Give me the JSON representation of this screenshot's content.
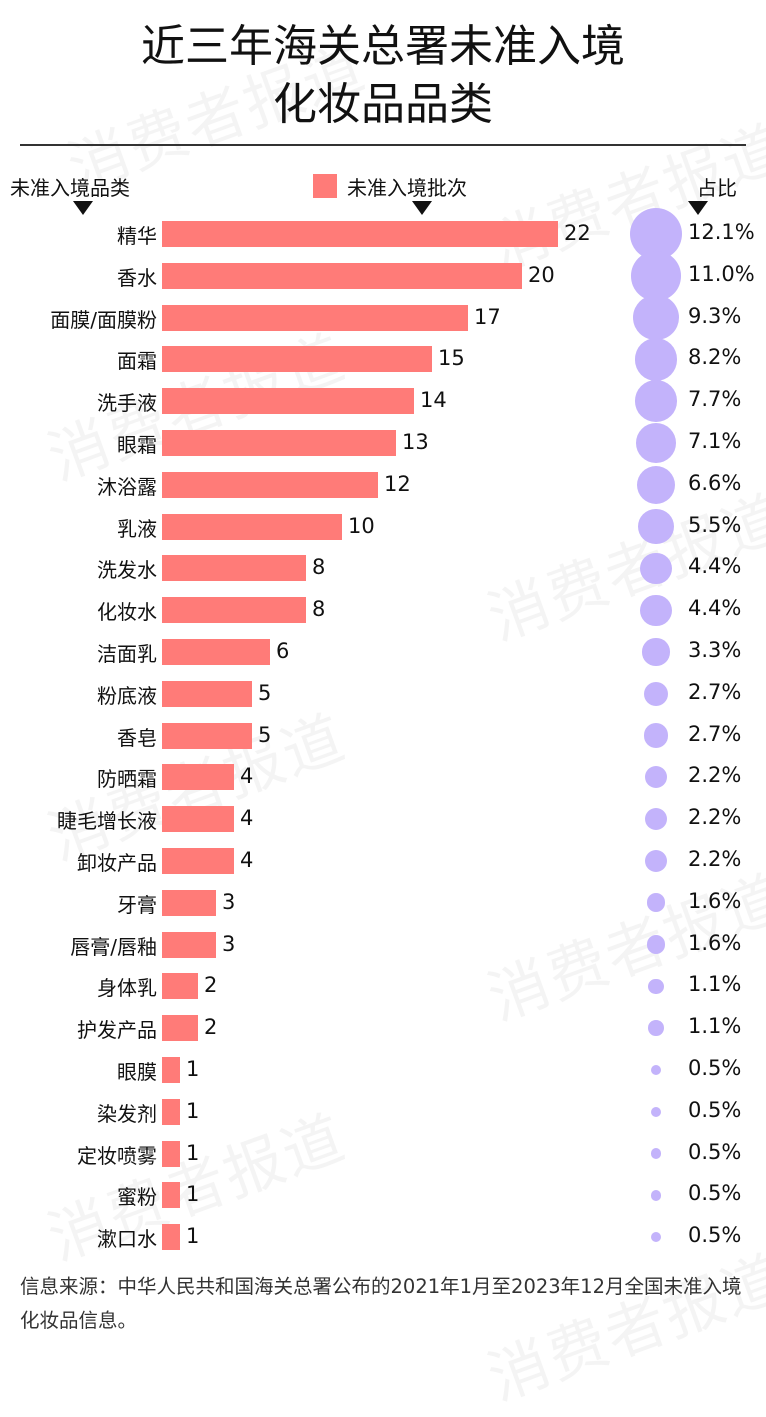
{
  "title_lines": [
    "近三年海关总署未准入境",
    "化妆品品类"
  ],
  "headers": {
    "category": "未准入境品类",
    "batches": "未准入境批次",
    "share": "占比"
  },
  "colors": {
    "bar": "#ff7b78",
    "bubble": "#c3b3fb",
    "text": "#111111",
    "rule": "#333333"
  },
  "watermark": "消费者报道",
  "footer": "信息来源：中华人民共和国海关总署公布的2021年1月至2023年12月全国未准入境化妆品信息。",
  "chart_data": {
    "type": "bar",
    "orientation": "horizontal",
    "title": "近三年海关总署未准入境化妆品品类",
    "xlabel": "未准入境批次",
    "ylabel": "未准入境品类",
    "legend": [
      "未准入境批次"
    ],
    "categories": [
      "精华",
      "香水",
      "面膜/面膜粉",
      "面霜",
      "洗手液",
      "眼霜",
      "沐浴露",
      "乳液",
      "洗发水",
      "化妆水",
      "洁面乳",
      "粉底液",
      "香皂",
      "防晒霜",
      "睫毛增长液",
      "卸妆产品",
      "牙膏",
      "唇膏/唇釉",
      "身体乳",
      "护发产品",
      "眼膜",
      "染发剂",
      "定妆喷雾",
      "蜜粉",
      "漱口水"
    ],
    "values": [
      22,
      20,
      17,
      15,
      14,
      13,
      12,
      10,
      8,
      8,
      6,
      5,
      5,
      4,
      4,
      4,
      3,
      3,
      2,
      2,
      1,
      1,
      1,
      1,
      1
    ],
    "shares": [
      "12.1%",
      "11.0%",
      "9.3%",
      "8.2%",
      "7.7%",
      "7.1%",
      "6.6%",
      "5.5%",
      "4.4%",
      "4.4%",
      "3.3%",
      "2.7%",
      "2.7%",
      "2.2%",
      "2.2%",
      "2.2%",
      "1.6%",
      "1.6%",
      "1.1%",
      "1.1%",
      "0.5%",
      "0.5%",
      "0.5%",
      "0.5%",
      "0.5%"
    ],
    "share_values": [
      12.1,
      11.0,
      9.3,
      8.2,
      7.7,
      7.1,
      6.6,
      5.5,
      4.4,
      4.4,
      3.3,
      2.7,
      2.7,
      2.2,
      2.2,
      2.2,
      1.6,
      1.6,
      1.1,
      1.1,
      0.5,
      0.5,
      0.5,
      0.5,
      0.5
    ],
    "grid": false
  }
}
